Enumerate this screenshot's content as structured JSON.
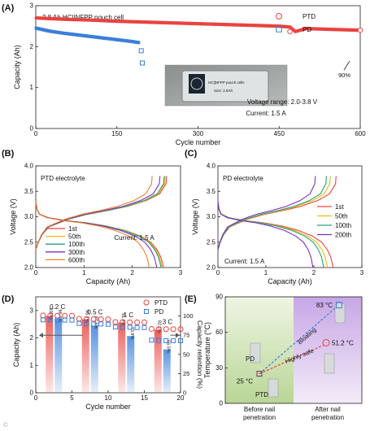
{
  "chart_data": [
    {
      "panel": "(A)",
      "type": "scatter",
      "annotation": "2.8 Ah HC||NFPP pouch cell",
      "xlabel": "Cycle number",
      "ylabel": "Capacity (Ah)",
      "xlim": [
        0,
        600
      ],
      "ylim": [
        0,
        3
      ],
      "xticks": [
        0,
        150,
        300,
        450,
        600
      ],
      "yticks": [
        0,
        1,
        2,
        3
      ],
      "legend_position": "top-right",
      "series": [
        {
          "name": "PTD",
          "marker": "circle",
          "color": "#e8433e",
          "x": [
            1,
            50,
            100,
            150,
            200,
            250,
            300,
            350,
            400,
            450,
            470,
            480,
            500,
            550,
            600
          ],
          "y": [
            2.7,
            2.67,
            2.65,
            2.62,
            2.6,
            2.58,
            2.56,
            2.54,
            2.52,
            2.5,
            2.48,
            2.37,
            2.44,
            2.42,
            2.4
          ]
        },
        {
          "name": "PD",
          "marker": "square",
          "color": "#3b7fd9",
          "x": [
            1,
            25,
            50,
            75,
            100,
            125,
            150,
            175,
            190,
            195,
            197
          ],
          "y": [
            2.45,
            2.38,
            2.33,
            2.29,
            2.25,
            2.21,
            2.17,
            2.13,
            2.1,
            1.9,
            1.6
          ]
        }
      ],
      "point_labels": [
        {
          "text": "90%",
          "x": 600,
          "y": 2.4
        }
      ],
      "inset": {
        "photo_caption_1": "HC||NFPP pouch cells",
        "photo_caption_2": "Size: 2.8Ah"
      },
      "notes": [
        "Voltage range: 2.0-3.8 V",
        "Current: 1.5 A"
      ]
    },
    {
      "panel": "(B)",
      "type": "line",
      "annotation": "PTD electrolyte",
      "current_note": "Current: 1.5 A",
      "xlabel": "Capacity (Ah)",
      "ylabel": "Voltage (V)",
      "xlim": [
        0,
        3
      ],
      "ylim": [
        2.0,
        4.0
      ],
      "xticks": [
        0,
        1,
        2,
        3
      ],
      "yticks": [
        2.0,
        2.5,
        3.0,
        3.5,
        4.0
      ],
      "legend_position": "bottom-left",
      "series": [
        {
          "name": "1st",
          "color": "#e8433e",
          "qmax": 2.7
        },
        {
          "name": "50th",
          "color": "#f2b705",
          "qmax": 2.67
        },
        {
          "name": "100th",
          "color": "#20a47b",
          "qmax": 2.65
        },
        {
          "name": "300th",
          "color": "#7a32b8",
          "qmax": 2.56
        },
        {
          "name": "600th",
          "color": "#f07f2a",
          "qmax": 2.4
        }
      ]
    },
    {
      "panel": "(C)",
      "type": "line",
      "annotation": "PD electrolyte",
      "current_note": "Current: 1.5 A",
      "xlabel": "Capacity (Ah)",
      "ylabel": "Voltage (V)",
      "xlim": [
        0,
        3
      ],
      "ylim": [
        2.0,
        4.0
      ],
      "xticks": [
        0,
        1,
        2,
        3
      ],
      "yticks": [
        2.0,
        2.5,
        3.0,
        3.5,
        4.0
      ],
      "legend_position": "right",
      "series": [
        {
          "name": "1st",
          "color": "#e8433e",
          "qmax": 2.45
        },
        {
          "name": "50th",
          "color": "#f2b705",
          "qmax": 2.33
        },
        {
          "name": "100th",
          "color": "#20a47b",
          "qmax": 2.25
        },
        {
          "name": "200th",
          "color": "#7a32b8",
          "qmax": 2.02
        }
      ]
    },
    {
      "panel": "(D)",
      "type": "scatter",
      "xlabel": "Cycle number",
      "ylabel": "Capacity (Ah)",
      "y2label": "Capacity retention (%)",
      "xlim": [
        0,
        20
      ],
      "ylim": [
        0,
        3.5
      ],
      "y2lim": [
        0,
        125
      ],
      "xticks": [
        0,
        5,
        10,
        15,
        20
      ],
      "yticks": [
        0,
        1,
        2,
        3
      ],
      "y2ticks": [
        0,
        25,
        50,
        75,
        100
      ],
      "legend_position": "top-right",
      "rate_labels": [
        "0.2 C",
        "0.5 C",
        "1 C",
        "3 C"
      ],
      "series": [
        {
          "name": "PTD",
          "marker": "circle",
          "color": "#e8433e",
          "x": [
            1,
            2,
            3,
            4,
            5,
            6,
            7,
            8,
            9,
            10,
            11,
            12,
            13,
            14,
            15,
            16,
            17,
            18,
            19,
            20
          ],
          "y": [
            2.82,
            2.82,
            2.81,
            2.81,
            2.81,
            2.7,
            2.69,
            2.69,
            2.68,
            2.68,
            2.58,
            2.58,
            2.57,
            2.57,
            2.57,
            2.33,
            2.32,
            2.32,
            2.32,
            2.32
          ]
        },
        {
          "name": "PD",
          "marker": "square",
          "color": "#3b7fd9",
          "x": [
            1,
            2,
            3,
            4,
            5,
            6,
            7,
            8,
            9,
            10,
            11,
            12,
            13,
            14,
            15,
            16,
            17,
            18,
            19,
            20
          ],
          "y": [
            2.66,
            2.66,
            2.65,
            2.65,
            2.65,
            2.53,
            2.52,
            2.51,
            2.51,
            2.5,
            2.4,
            2.39,
            2.39,
            2.38,
            2.38,
            1.92,
            1.91,
            1.9,
            1.9,
            1.9
          ]
        }
      ],
      "retention": {
        "positions": [
          2.5,
          7.5,
          12.5,
          17.5
        ],
        "PTD": [
          100,
          95.7,
          91.4,
          82.1
        ],
        "PD": [
          96.4,
          87.5,
          73.9,
          56.5
        ],
        "PTD_labels": [
          "100%",
          "95.7%",
          "91.4%",
          "82.1%"
        ],
        "PD_labels": [
          "96.4%",
          "87.5%",
          "73.9%",
          "56.5%"
        ]
      }
    },
    {
      "panel": "(E)",
      "type": "scatter",
      "ylabel": "Temperature (°C)",
      "ylim": [
        0,
        90
      ],
      "yticks": [
        0,
        30,
        60,
        90
      ],
      "categories": [
        "Before nail penetration",
        "After nail penetration"
      ],
      "category_lines": [
        [
          "Before nail",
          "penetration"
        ],
        [
          "After nail",
          "penetration"
        ]
      ],
      "points": [
        {
          "series": "PD",
          "category": 0,
          "temperature": 25,
          "color": "#7a2a5a",
          "marker": "square"
        },
        {
          "series": "PTD",
          "category": 0,
          "temperature": 25,
          "color": "#7a2a5a",
          "marker": "square"
        },
        {
          "series": "PD",
          "category": 1,
          "temperature": 83,
          "color": "#3b7fd9",
          "marker": "square"
        },
        {
          "series": "PTD",
          "category": 1,
          "temperature": 51.2,
          "color": "#e8433e",
          "marker": "circle"
        }
      ],
      "labels": {
        "pd": "PD",
        "ptd": "PTD",
        "start_temp": "25 °C",
        "pd_end": "83 °C",
        "ptd_end": "51.2 °C",
        "pd_arrow": "Bloating",
        "ptd_arrow": "Highly safe"
      },
      "colors": {
        "left_bg": "#cfe3b4",
        "right_bg": "#d9c4ea",
        "pd": "#3b7fd9",
        "ptd": "#e8433e"
      }
    }
  ]
}
